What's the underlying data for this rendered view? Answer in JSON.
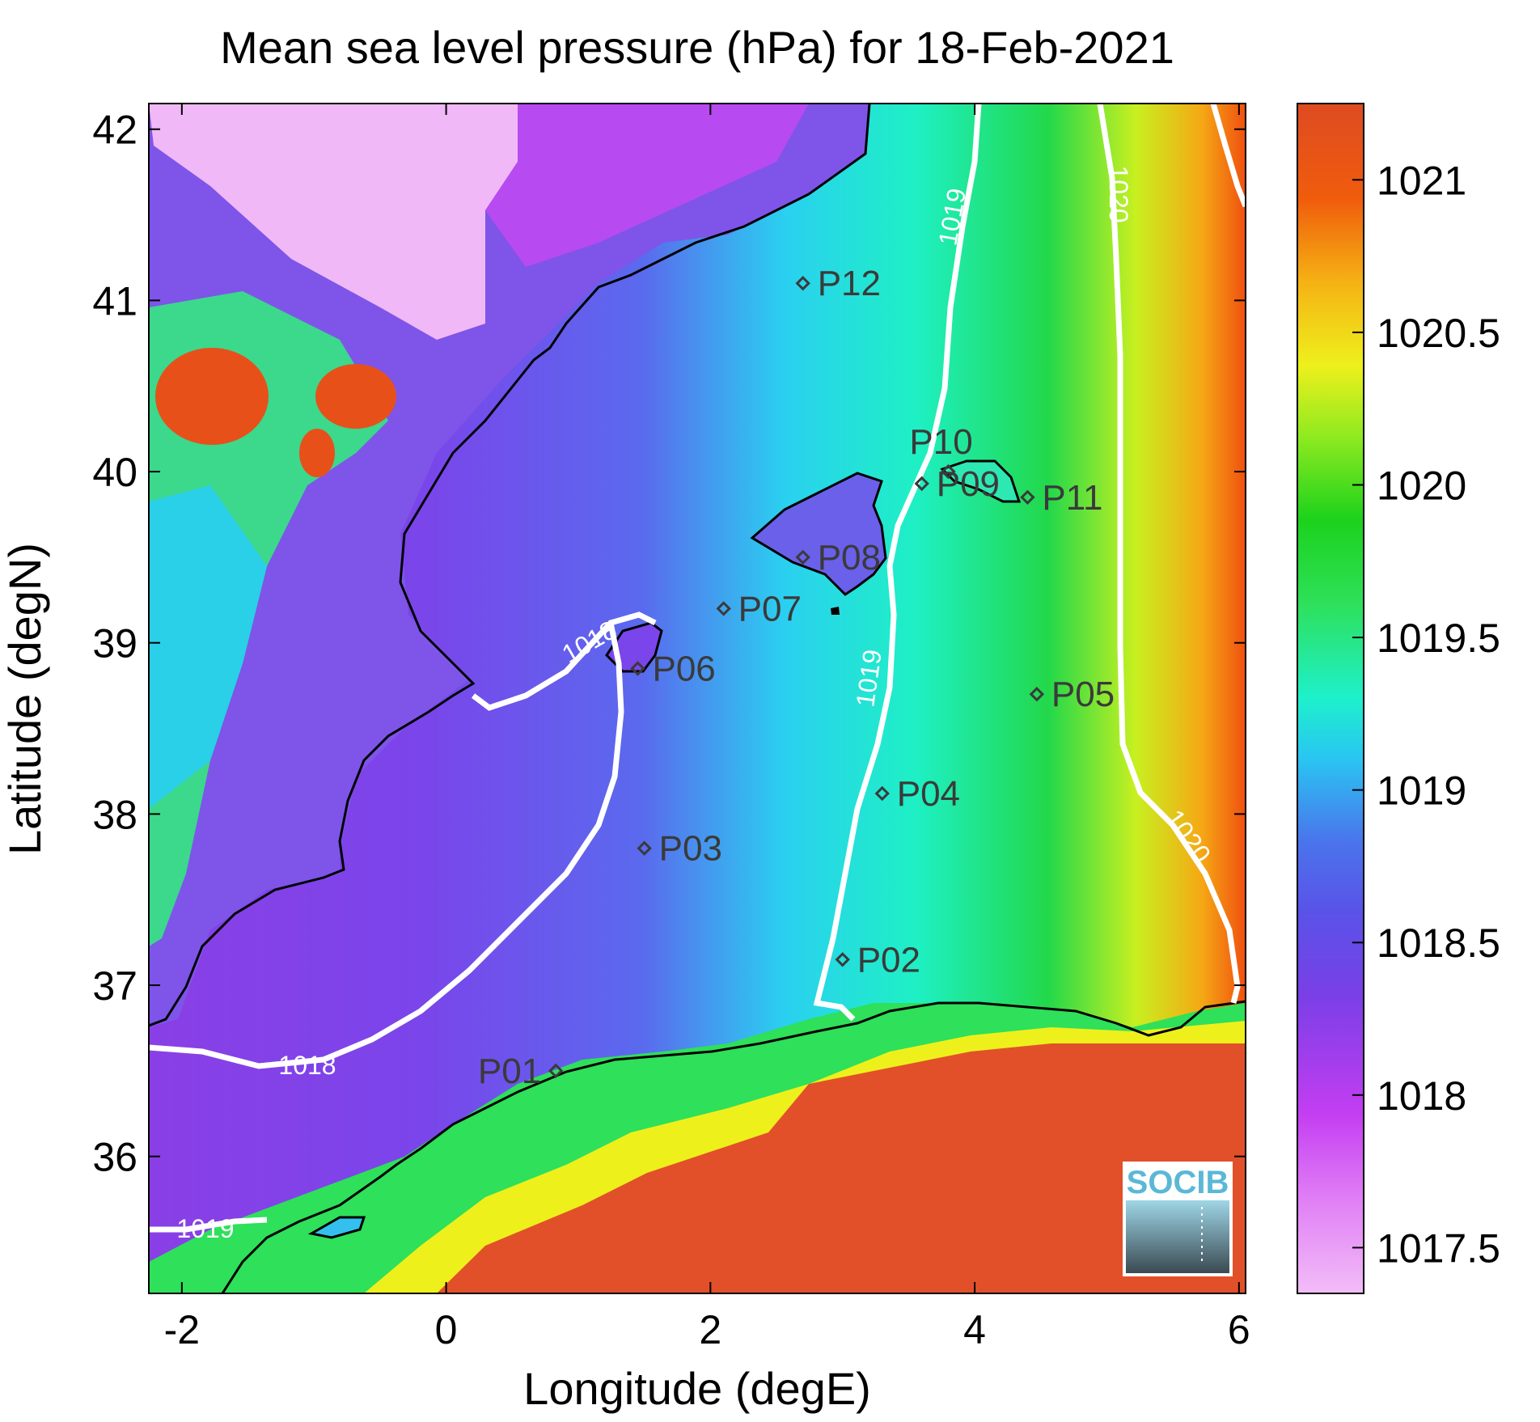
{
  "title": "Mean sea level pressure (hPa) for 18-Feb-2021",
  "xlabel": "Longitude (degE)",
  "ylabel": "Latitude (degN)",
  "logo_text": "SOCIB",
  "chart_data": {
    "type": "heatmap",
    "title": "Mean sea level pressure (hPa) for 18-Feb-2021",
    "xlabel": "Longitude (degE)",
    "ylabel": "Latitude (degN)",
    "xlim": [
      -2.25,
      6.05
    ],
    "ylim": [
      35.2,
      42.15
    ],
    "xticks": [
      -2,
      0,
      2,
      4,
      6
    ],
    "yticks": [
      36,
      37,
      38,
      39,
      40,
      41,
      42
    ],
    "colorbar": {
      "range": [
        1017.35,
        1021.25
      ],
      "ticks": [
        1017.5,
        1018,
        1018.5,
        1019,
        1019.5,
        1020,
        1020.5,
        1021
      ],
      "colors": [
        "#f2bdf7",
        "#c43ef2",
        "#7a3fe6",
        "#4a74ec",
        "#29c6f2",
        "#1ef0cc",
        "#2ee05a",
        "#1cd21c",
        "#b4f020",
        "#eef01c",
        "#f5b214",
        "#f05c0c",
        "#de4b22"
      ]
    },
    "stations": [
      {
        "name": "P01",
        "lon": 0.83,
        "lat": 36.5
      },
      {
        "name": "P02",
        "lon": 3.0,
        "lat": 37.15
      },
      {
        "name": "P03",
        "lon": 1.5,
        "lat": 37.8
      },
      {
        "name": "P04",
        "lon": 3.3,
        "lat": 38.12
      },
      {
        "name": "P05",
        "lon": 4.47,
        "lat": 38.7
      },
      {
        "name": "P06",
        "lon": 1.45,
        "lat": 38.85
      },
      {
        "name": "P07",
        "lon": 2.1,
        "lat": 39.2
      },
      {
        "name": "P08",
        "lon": 2.7,
        "lat": 39.5
      },
      {
        "name": "P09",
        "lon": 3.6,
        "lat": 39.93
      },
      {
        "name": "P10",
        "lon": 3.8,
        "lat": 40.0
      },
      {
        "name": "P11",
        "lon": 4.4,
        "lat": 39.85
      },
      {
        "name": "P12",
        "lon": 2.7,
        "lat": 41.1
      }
    ],
    "contours": [
      {
        "level": 1018,
        "labels": [
          "1018",
          "1018"
        ]
      },
      {
        "level": 1019,
        "labels": [
          "1019",
          "1019",
          "1019"
        ]
      },
      {
        "level": 1020,
        "labels": [
          "1020",
          "1020"
        ]
      }
    ]
  }
}
